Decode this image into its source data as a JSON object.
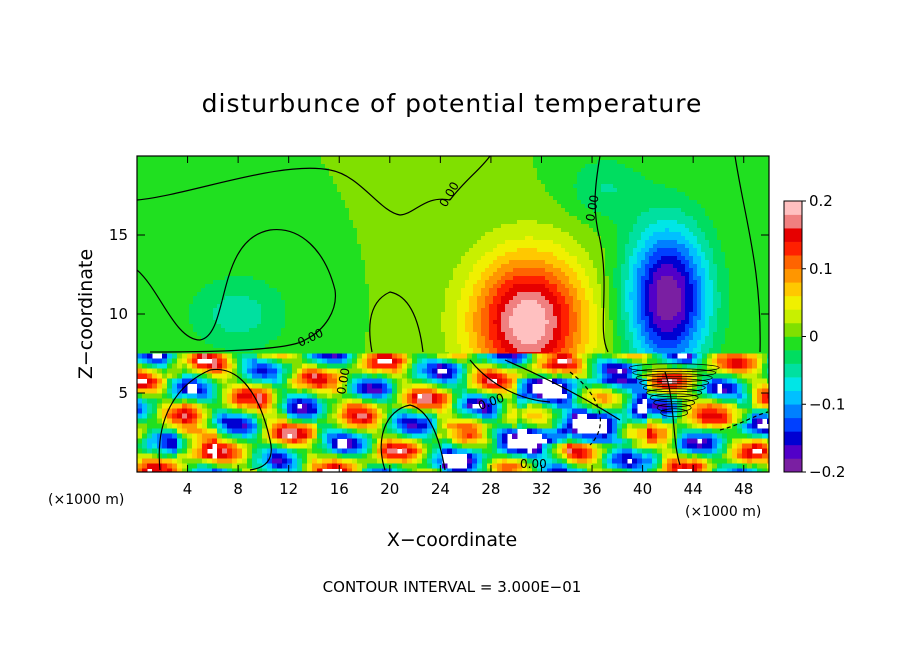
{
  "chart_data": {
    "type": "heatmap",
    "title": "disturbunce of potential temperature",
    "xlabel": "X−coordinate",
    "ylabel": "Z−coordinate",
    "x_unit_left": "(×1000 m)",
    "x_unit_right": "(×1000 m)",
    "xlim": [
      0,
      50
    ],
    "ylim": [
      0,
      20
    ],
    "x_ticks": [
      4,
      8,
      12,
      16,
      20,
      24,
      28,
      32,
      36,
      40,
      44,
      48
    ],
    "y_ticks": [
      5,
      10,
      15
    ],
    "colorbar": {
      "range": [
        -0.2,
        0.2
      ],
      "tick_values": [
        0.2,
        0.1,
        0,
        -0.1,
        -0.2
      ],
      "tick_labels": [
        "0.2",
        "0.1",
        "0",
        "−0.1",
        "−0.2"
      ],
      "colors": [
        "#7a1fa2",
        "#5200c8",
        "#0000d2",
        "#0040ff",
        "#0080ff",
        "#00c0ff",
        "#00e6e6",
        "#00e0a0",
        "#00dd60",
        "#20e020",
        "#80e000",
        "#c8f000",
        "#f0f000",
        "#ffc800",
        "#ff9600",
        "#ff6400",
        "#ff2000",
        "#e60000",
        "#f08080",
        "#ffc0c0"
      ]
    },
    "contour_labels": [
      "0.00",
      "0.00",
      "0.00",
      "0.00",
      "0.00",
      "0.00"
    ],
    "contour_interval_text": "CONTOUR INTERVAL = 3.000E−01",
    "features": [
      {
        "kind": "warm-anomaly",
        "x": 31,
        "z": 9.5,
        "value": 0.2,
        "sx": 4.5,
        "sz": 4.2
      },
      {
        "kind": "cold-anomaly",
        "x": 42,
        "z": 11,
        "value": -0.2,
        "sx": 3.2,
        "sz": 4.5
      },
      {
        "kind": "slight-cold",
        "x": 8,
        "z": 10,
        "value": -0.05,
        "sx": 4,
        "sz": 2.5
      },
      {
        "kind": "slight-cold",
        "x": 37,
        "z": 18,
        "value": -0.04,
        "sx": 3,
        "sz": 2
      }
    ],
    "boundary_layer_top_z": 7.5
  }
}
